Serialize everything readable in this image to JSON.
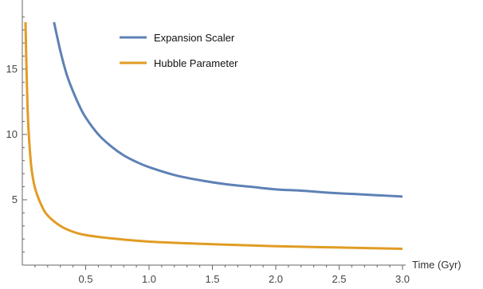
{
  "chart_data": {
    "type": "line",
    "title": "",
    "xlabel": "Time (Gyr)",
    "ylabel": "",
    "xlim": [
      0,
      3.0
    ],
    "ylim": [
      0,
      19.5
    ],
    "xticks": [
      {
        "value": 0.5,
        "label": "0.5"
      },
      {
        "value": 1.0,
        "label": "1.0"
      },
      {
        "value": 1.5,
        "label": "1.5"
      },
      {
        "value": 2.0,
        "label": "2.0"
      },
      {
        "value": 2.5,
        "label": "2.5"
      },
      {
        "value": 3.0,
        "label": "3.0"
      }
    ],
    "xminor_step": 0.1,
    "yticks": [
      {
        "value": 5,
        "label": "5"
      },
      {
        "value": 10,
        "label": "10"
      },
      {
        "value": 15,
        "label": "15"
      }
    ],
    "yminor_step": 1,
    "grid": false,
    "legend_position": "top-center",
    "series": [
      {
        "name": "Expansion Scaler",
        "color": "#5e81b5",
        "x": [
          0.25,
          0.3,
          0.35,
          0.4,
          0.45,
          0.5,
          0.6,
          0.7,
          0.8,
          0.9,
          1.0,
          1.2,
          1.4,
          1.6,
          1.8,
          2.0,
          2.2,
          2.4,
          2.6,
          2.8,
          3.0
        ],
        "y": [
          18.6,
          16.4,
          14.6,
          13.3,
          12.2,
          11.3,
          10.0,
          9.1,
          8.4,
          7.9,
          7.5,
          6.9,
          6.5,
          6.2,
          6.0,
          5.8,
          5.7,
          5.55,
          5.45,
          5.35,
          5.25
        ]
      },
      {
        "name": "Hubble Parameter",
        "color": "#e19c24",
        "x": [
          0.025,
          0.03,
          0.04,
          0.05,
          0.07,
          0.1,
          0.15,
          0.2,
          0.3,
          0.4,
          0.5,
          0.7,
          1.0,
          1.5,
          2.0,
          2.5,
          3.0
        ],
        "y": [
          18.6,
          16.3,
          12.5,
          10.2,
          7.6,
          5.9,
          4.6,
          3.8,
          3.0,
          2.55,
          2.3,
          2.05,
          1.8,
          1.6,
          1.45,
          1.35,
          1.25
        ]
      }
    ]
  }
}
